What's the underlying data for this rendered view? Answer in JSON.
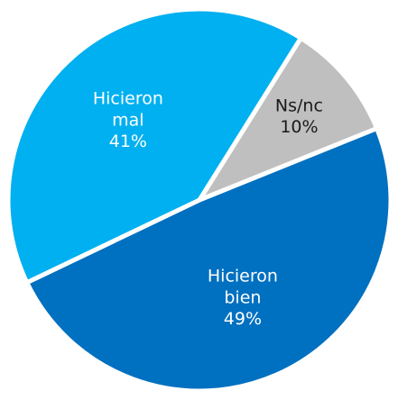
{
  "chart_data": {
    "type": "pie",
    "categories": [
      "Ns/nc",
      "Hicieron bien",
      "Hicieron mal"
    ],
    "values": [
      10,
      49,
      41
    ],
    "value_labels": [
      "10%",
      "49%",
      "41%"
    ],
    "colors": [
      "#bfbfbf",
      "#0070c0",
      "#00b0f0"
    ]
  }
}
